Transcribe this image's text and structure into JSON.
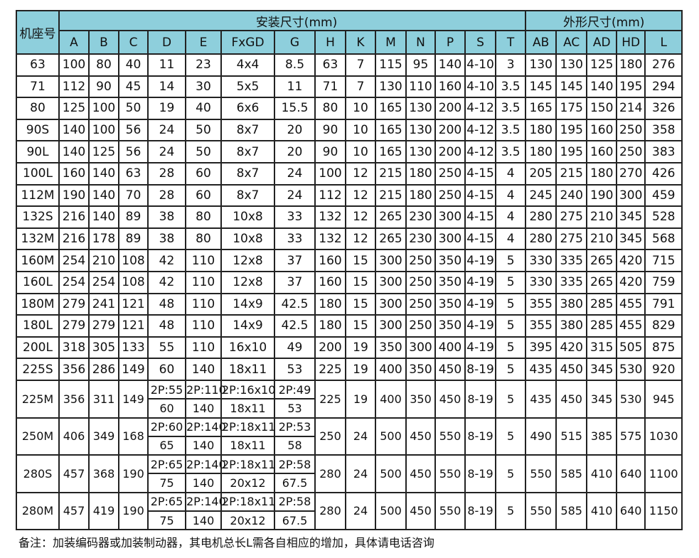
{
  "header": {
    "frame": "机座号",
    "group_install": "安装尺寸(mm)",
    "group_outline": "外形尺寸(mm)",
    "columns": [
      "A",
      "B",
      "C",
      "D",
      "E",
      "FxGD",
      "G",
      "H",
      "K",
      "M",
      "N",
      "P",
      "S",
      "T",
      "AB",
      "AC",
      "AD",
      "HD",
      "L"
    ]
  },
  "rows": [
    [
      "63",
      "100",
      "80",
      "40",
      "11",
      "23",
      "4x4",
      "8.5",
      "63",
      "7",
      "115",
      "95",
      "140",
      "4-10",
      "3",
      "130",
      "130",
      "125",
      "180",
      "276"
    ],
    [
      "71",
      "112",
      "90",
      "45",
      "14",
      "30",
      "5x5",
      "11",
      "71",
      "7",
      "130",
      "110",
      "160",
      "4-10",
      "3.5",
      "145",
      "145",
      "140",
      "195",
      "294"
    ],
    [
      "80",
      "125",
      "100",
      "50",
      "19",
      "40",
      "6x6",
      "15.5",
      "80",
      "10",
      "165",
      "130",
      "200",
      "4-12",
      "3.5",
      "165",
      "175",
      "150",
      "214",
      "326"
    ],
    [
      "90S",
      "140",
      "100",
      "56",
      "24",
      "50",
      "8x7",
      "20",
      "90",
      "10",
      "165",
      "130",
      "200",
      "4-12",
      "3.5",
      "180",
      "195",
      "160",
      "250",
      "358"
    ],
    [
      "90L",
      "140",
      "125",
      "56",
      "24",
      "50",
      "8x7",
      "20",
      "90",
      "10",
      "165",
      "130",
      "200",
      "4-12",
      "3.5",
      "180",
      "195",
      "160",
      "250",
      "383"
    ],
    [
      "100L",
      "160",
      "140",
      "63",
      "28",
      "60",
      "8x7",
      "24",
      "100",
      "12",
      "215",
      "180",
      "250",
      "4-15",
      "4",
      "205",
      "215",
      "180",
      "270",
      "426"
    ],
    [
      "112M",
      "190",
      "140",
      "70",
      "28",
      "60",
      "8x7",
      "24",
      "112",
      "12",
      "215",
      "180",
      "250",
      "4-15",
      "4",
      "245",
      "240",
      "190",
      "300",
      "459"
    ],
    [
      "132S",
      "216",
      "140",
      "89",
      "38",
      "80",
      "10x8",
      "33",
      "132",
      "12",
      "265",
      "230",
      "300",
      "4-15",
      "4",
      "280",
      "275",
      "210",
      "345",
      "528"
    ],
    [
      "132M",
      "216",
      "178",
      "89",
      "38",
      "80",
      "10x8",
      "33",
      "132",
      "12",
      "265",
      "230",
      "300",
      "4-15",
      "4",
      "280",
      "275",
      "210",
      "345",
      "568"
    ],
    [
      "160M",
      "254",
      "210",
      "108",
      "42",
      "110",
      "12x8",
      "37",
      "160",
      "15",
      "300",
      "250",
      "350",
      "4-19",
      "5",
      "330",
      "335",
      "265",
      "420",
      "715"
    ],
    [
      "160L",
      "254",
      "254",
      "108",
      "42",
      "110",
      "12x8",
      "37",
      "160",
      "15",
      "300",
      "250",
      "350",
      "4-19",
      "5",
      "330",
      "335",
      "265",
      "420",
      "759"
    ],
    [
      "180M",
      "279",
      "241",
      "121",
      "48",
      "110",
      "14x9",
      "42.5",
      "180",
      "15",
      "300",
      "250",
      "350",
      "4-19",
      "5",
      "355",
      "380",
      "285",
      "455",
      "791"
    ],
    [
      "180L",
      "279",
      "279",
      "121",
      "48",
      "110",
      "14x9",
      "42.5",
      "180",
      "15",
      "300",
      "250",
      "350",
      "4-19",
      "5",
      "355",
      "380",
      "285",
      "455",
      "829"
    ],
    [
      "200L",
      "318",
      "305",
      "133",
      "55",
      "110",
      "16x10",
      "49",
      "200",
      "19",
      "350",
      "300",
      "400",
      "4-19",
      "5",
      "395",
      "420",
      "315",
      "505",
      "875"
    ],
    [
      "225S",
      "356",
      "286",
      "149",
      "60",
      "140",
      "18x11",
      "53",
      "225",
      "19",
      "400",
      "350",
      "450",
      "8-19",
      "5",
      "435",
      "450",
      "345",
      "530",
      "920"
    ],
    [
      "225M",
      "356",
      "311",
      "149",
      [
        "2P:55",
        "60"
      ],
      [
        "2P:110",
        "140"
      ],
      [
        "2P:16x10",
        "18x11"
      ],
      [
        "2P:49",
        "53"
      ],
      "225",
      "19",
      "400",
      "350",
      "450",
      "8-19",
      "5",
      "435",
      "450",
      "345",
      "530",
      "945"
    ],
    [
      "250M",
      "406",
      "349",
      "168",
      [
        "2P:60",
        "65"
      ],
      [
        "2P:140",
        "140"
      ],
      [
        "2P:18x11",
        "18x11"
      ],
      [
        "2P:53",
        "58"
      ],
      "250",
      "24",
      "500",
      "450",
      "550",
      "8-19",
      "5",
      "490",
      "515",
      "385",
      "575",
      "1030"
    ],
    [
      "280S",
      "457",
      "368",
      "190",
      [
        "2P:65",
        "75"
      ],
      [
        "2P:140",
        "140"
      ],
      [
        "2P:18x11",
        "20x12"
      ],
      [
        "2P:58",
        "67.5"
      ],
      "280",
      "24",
      "500",
      "450",
      "550",
      "8-19",
      "5",
      "550",
      "585",
      "410",
      "640",
      "1100"
    ],
    [
      "280M",
      "457",
      "419",
      "190",
      [
        "2P:65",
        "75"
      ],
      [
        "2P:140",
        "140"
      ],
      [
        "2P:18x11",
        "20x12"
      ],
      [
        "2P:58",
        "67.5"
      ],
      "280",
      "24",
      "500",
      "450",
      "550",
      "8-19",
      "5",
      "550",
      "585",
      "410",
      "640",
      "1150"
    ]
  ],
  "note": "备注：加装编码器或加装制动器，其电机总长L需各自相应的增加，具体请电话咨询"
}
